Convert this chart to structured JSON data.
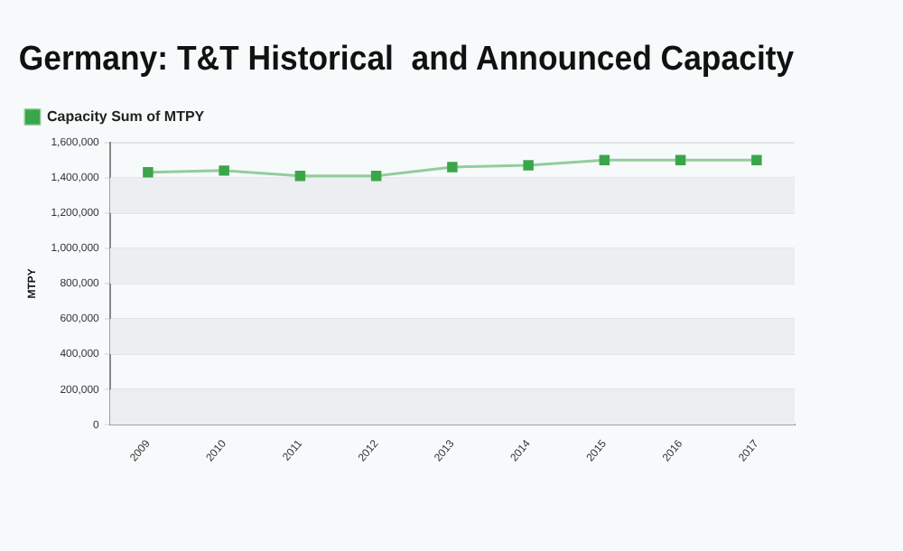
{
  "chart_data": {
    "type": "line",
    "title": "Germany: T&T Historical  and Announced Capacity",
    "ylabel": "MTPY",
    "categories": [
      "2009",
      "2010",
      "2011",
      "2012",
      "2013",
      "2014",
      "2015",
      "2016",
      "2017"
    ],
    "series": [
      {
        "name": "Capacity Sum of MTPY",
        "color": "#3aa64a",
        "values": [
          1430000,
          1440000,
          1410000,
          1410000,
          1460000,
          1470000,
          1500000,
          1500000,
          1500000
        ]
      }
    ],
    "ylim": [
      0,
      1600000
    ],
    "yticks": [
      0,
      {
        "value": 200000,
        "label": "200,000"
      },
      {
        "value": 400000,
        "label": "400,000"
      },
      {
        "value": 600000,
        "label": "600,000"
      },
      {
        "value": 800000,
        "label": "800,000"
      },
      {
        "value": 1000000,
        "label": "1,000,000"
      },
      {
        "value": 1200000,
        "label": "1,200,000"
      },
      {
        "value": 1400000,
        "label": "1,400,000"
      },
      {
        "value": 1600000,
        "label": "1,600,000"
      }
    ],
    "grid": "y",
    "legend": "top left",
    "marker": "square",
    "line_style": "solid"
  }
}
